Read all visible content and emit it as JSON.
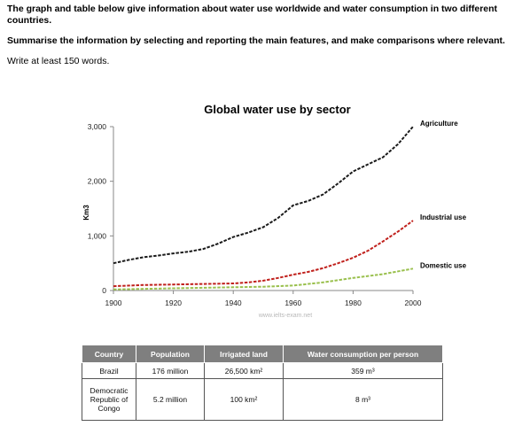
{
  "prompt": {
    "instruction": "The graph and table below give information about water use worldwide and water consumption in two different countries.",
    "task": "Summarise the information by selecting and reporting the main features, and make comparisons where relevant.",
    "word_count": "Write at least 150 words."
  },
  "chart_data": {
    "type": "line",
    "title": "Global water use by sector",
    "xlabel": "",
    "ylabel": "Km3",
    "xlim": [
      1900,
      2000
    ],
    "ylim": [
      0,
      3000
    ],
    "x_ticks": [
      "1900",
      "1920",
      "1940",
      "1960",
      "1980",
      "2000"
    ],
    "y_ticks": [
      "0",
      "1,000",
      "2,000",
      "3,000"
    ],
    "x_tick_values": [
      1900,
      1920,
      1940,
      1960,
      1980,
      2000
    ],
    "y_tick_values": [
      0,
      1000,
      2000,
      3000
    ],
    "grid": false,
    "legend": "labels at line ends",
    "watermark": "www.ielts-exam.net",
    "series": [
      {
        "name": "Agriculture",
        "color": "#1a1a1a",
        "x": [
          1900,
          1905,
          1910,
          1915,
          1920,
          1925,
          1930,
          1935,
          1940,
          1945,
          1950,
          1955,
          1960,
          1965,
          1970,
          1975,
          1980,
          1985,
          1990,
          1995,
          2000
        ],
        "values": [
          500,
          560,
          610,
          640,
          680,
          710,
          760,
          860,
          980,
          1060,
          1160,
          1330,
          1560,
          1640,
          1760,
          1960,
          2180,
          2310,
          2440,
          2680,
          3000
        ]
      },
      {
        "name": "Industrial use",
        "color": "#c0201c",
        "x": [
          1900,
          1910,
          1920,
          1930,
          1940,
          1945,
          1950,
          1955,
          1960,
          1965,
          1970,
          1975,
          1980,
          1985,
          1990,
          1995,
          2000
        ],
        "values": [
          80,
          100,
          110,
          120,
          130,
          150,
          180,
          230,
          290,
          340,
          410,
          500,
          600,
          730,
          900,
          1080,
          1280
        ]
      },
      {
        "name": "Domestic use",
        "color": "#9ac04e",
        "x": [
          1900,
          1920,
          1940,
          1950,
          1960,
          1970,
          1980,
          1990,
          2000
        ],
        "values": [
          20,
          40,
          60,
          70,
          90,
          150,
          230,
          300,
          400
        ]
      }
    ]
  },
  "table": {
    "headers": [
      "Country",
      "Population",
      "Irrigated land",
      "Water consumption per person"
    ],
    "rows": [
      [
        "Brazil",
        "176 million",
        "26,500 km²",
        "359 m³"
      ],
      [
        "Democratic Republic of Congo",
        "5.2 million",
        "100 km²",
        "8 m³"
      ]
    ]
  }
}
